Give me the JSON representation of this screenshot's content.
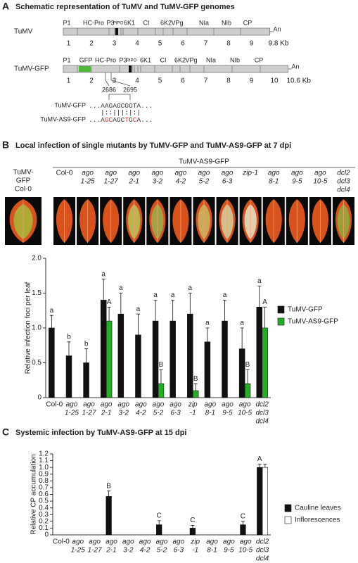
{
  "panels": [
    {
      "letter": "A",
      "title": "Schematic representation of TuMV and TuMV-GFP genomes"
    },
    {
      "letter": "B",
      "title": "Local infection of single mutants by TuMV-GFP and TuMV-AS9-GFP at 7 dpi"
    },
    {
      "letter": "C",
      "title": "Systemic infection by TuMV-AS9-GFP at 15 dpi"
    }
  ],
  "genomes": [
    {
      "name": "TuMV",
      "proteins": [
        "P1",
        "HC-Pro",
        "P3",
        "PIPO",
        "6K1",
        "CI",
        "6K2",
        "VPg",
        "NIa",
        "NIb",
        "CP"
      ],
      "end": "An",
      "kb_ticks": [
        1,
        2,
        3,
        4,
        5,
        6,
        7,
        8,
        9
      ],
      "length": {
        "value": 9.8,
        "label": "9.8 Kb"
      }
    },
    {
      "name": "TuMV-GFP",
      "proteins": [
        "P1",
        "GFP",
        "HC-Pro",
        "P3",
        "PIPO",
        "6K1",
        "CI",
        "6K2",
        "VPg",
        "NIa",
        "NIb",
        "CP"
      ],
      "end": "An",
      "kb_ticks": [
        1,
        2,
        3,
        4,
        5,
        6,
        7,
        8,
        9,
        10
      ],
      "length": {
        "value": 10.6,
        "label": "10.6 Kb"
      }
    }
  ],
  "insert_positions": [
    2686,
    2695
  ],
  "sequences": [
    {
      "name": "TuMV-GFP",
      "segments": [
        {
          "text": "...AAGAGCGGTA...",
          "color": "#333333"
        }
      ]
    },
    {
      "name": "TuMV-AS9-GFP",
      "segments": [
        {
          "text": "...A",
          "color": "#333333"
        },
        {
          "text": "GC",
          "color": "#d0352a"
        },
        {
          "text": "AGC",
          "color": "#333333"
        },
        {
          "text": "T",
          "color": "#d0352a"
        },
        {
          "text": "G",
          "color": "#333333"
        },
        {
          "text": "C",
          "color": "#d0352a"
        },
        {
          "text": "A...",
          "color": "#333333"
        }
      ]
    }
  ],
  "match_line": "|::|||:|:|",
  "leaves": {
    "reference": [
      "TuMV-",
      "GFP",
      "Col-0"
    ],
    "header": "TuMV-AS9-GFP",
    "genotypes": [
      [
        "Col-0"
      ],
      [
        "ago",
        "1-25"
      ],
      [
        "ago",
        "1-27"
      ],
      [
        "ago",
        "2-1"
      ],
      [
        "ago",
        "3-2"
      ],
      [
        "ago",
        "4-2"
      ],
      [
        "ago",
        "5-2"
      ],
      [
        "ago",
        "6-3"
      ],
      [
        "zip-1"
      ],
      [
        "ago",
        "8-1"
      ],
      [
        "ago",
        "9-5"
      ],
      [
        "ago",
        "10-5"
      ],
      [
        "dcl2",
        "dcl3",
        "dcl4"
      ]
    ]
  },
  "chart_data": [
    {
      "type": "bar",
      "ylabel": "Relative infection foci per leaf",
      "categories": [
        [
          "Col-0"
        ],
        [
          "ago",
          "1-25"
        ],
        [
          "ago",
          "1-27"
        ],
        [
          "ago",
          "2-1"
        ],
        [
          "ago",
          "3-2"
        ],
        [
          "ago",
          "4-2"
        ],
        [
          "ago",
          "5-2"
        ],
        [
          "ago",
          "6-3"
        ],
        [
          "zip",
          "-1"
        ],
        [
          "ago",
          "8-1"
        ],
        [
          "ago",
          "9-5"
        ],
        [
          "ago",
          "10-5"
        ],
        [
          "dcl2",
          "dcl3",
          "dcl4"
        ]
      ],
      "ylim": [
        0,
        2.0
      ],
      "yticks": [
        0,
        0.5,
        {
          "value": 1.0,
          "label": "1.0"
        },
        1.5,
        {
          "value": 2.0,
          "label": "2.0"
        }
      ],
      "series": [
        {
          "name": "TuMV-GFP",
          "color": "#111111",
          "values": [
            1.0,
            0.6,
            0.5,
            1.4,
            1.2,
            0.9,
            1.1,
            1.1,
            1.2,
            0.8,
            1.1,
            0.7,
            1.3
          ],
          "errors": [
            0.18,
            0.2,
            0.2,
            0.3,
            0.3,
            0.3,
            0.3,
            0.3,
            0.3,
            0.2,
            0.3,
            0.3,
            0.3
          ],
          "labels": [
            "a",
            "b",
            "b",
            "a",
            "a",
            "a",
            "a",
            "a",
            "a",
            "a",
            "a",
            "a",
            "a"
          ]
        },
        {
          "name": "TuMV-AS9-GFP",
          "color": "#22b022",
          "values": [
            0,
            0,
            0,
            1.1,
            0,
            0,
            0.2,
            0,
            0.1,
            0,
            0,
            0.2,
            1.0
          ],
          "errors": [
            null,
            null,
            null,
            0.2,
            null,
            null,
            0.2,
            null,
            0.1,
            null,
            null,
            0.2,
            0.3
          ],
          "labels": [
            null,
            null,
            null,
            "A",
            null,
            null,
            "B",
            null,
            "B",
            null,
            null,
            "B",
            "A"
          ]
        }
      ]
    },
    {
      "type": "bar",
      "ylabel": "Relative CP accumulation",
      "categories": [
        [
          "Col-0"
        ],
        [
          "ago",
          "1-25"
        ],
        [
          "ago",
          "1-27"
        ],
        [
          "ago",
          "2-1"
        ],
        [
          "ago",
          "3-2"
        ],
        [
          "ago",
          "4-2"
        ],
        [
          "ago",
          "5-2"
        ],
        [
          "ago",
          "6-3"
        ],
        [
          "zip",
          "-1"
        ],
        [
          "ago",
          "8-1"
        ],
        [
          "ago",
          "9-5"
        ],
        [
          "ago",
          "10-5"
        ],
        [
          "dcl2",
          "dcl3",
          "dcl4"
        ]
      ],
      "ylim": [
        0,
        1.2
      ],
      "yticks": [
        0,
        0.1,
        0.2,
        0.3,
        0.4,
        0.5,
        0.6,
        0.7,
        0.8,
        0.9,
        {
          "value": 1.0,
          "label": "1.0"
        },
        1.1,
        1.2
      ],
      "series": [
        {
          "name": "Cauline leaves",
          "color": "#111111",
          "values": [
            0,
            0,
            0,
            0.57,
            0,
            0,
            0.15,
            0,
            0.1,
            0,
            0,
            0.15,
            1.0
          ],
          "errors": [
            null,
            null,
            null,
            0.08,
            null,
            null,
            0.06,
            null,
            0.04,
            null,
            null,
            0.05,
            0.05
          ],
          "labels": [
            null,
            null,
            null,
            "B",
            null,
            null,
            "C",
            null,
            "C",
            null,
            null,
            "C",
            "A"
          ]
        },
        {
          "name": "Inflorescences",
          "color": "#ffffff",
          "values": [
            0,
            0,
            0,
            0,
            0,
            0,
            0,
            0,
            0,
            0,
            0,
            0,
            1.0
          ],
          "errors": [
            null,
            null,
            null,
            null,
            null,
            null,
            null,
            null,
            null,
            null,
            null,
            null,
            0.05
          ],
          "labels": [
            null,
            null,
            null,
            null,
            null,
            null,
            null,
            null,
            null,
            null,
            null,
            null,
            null
          ]
        }
      ]
    }
  ]
}
